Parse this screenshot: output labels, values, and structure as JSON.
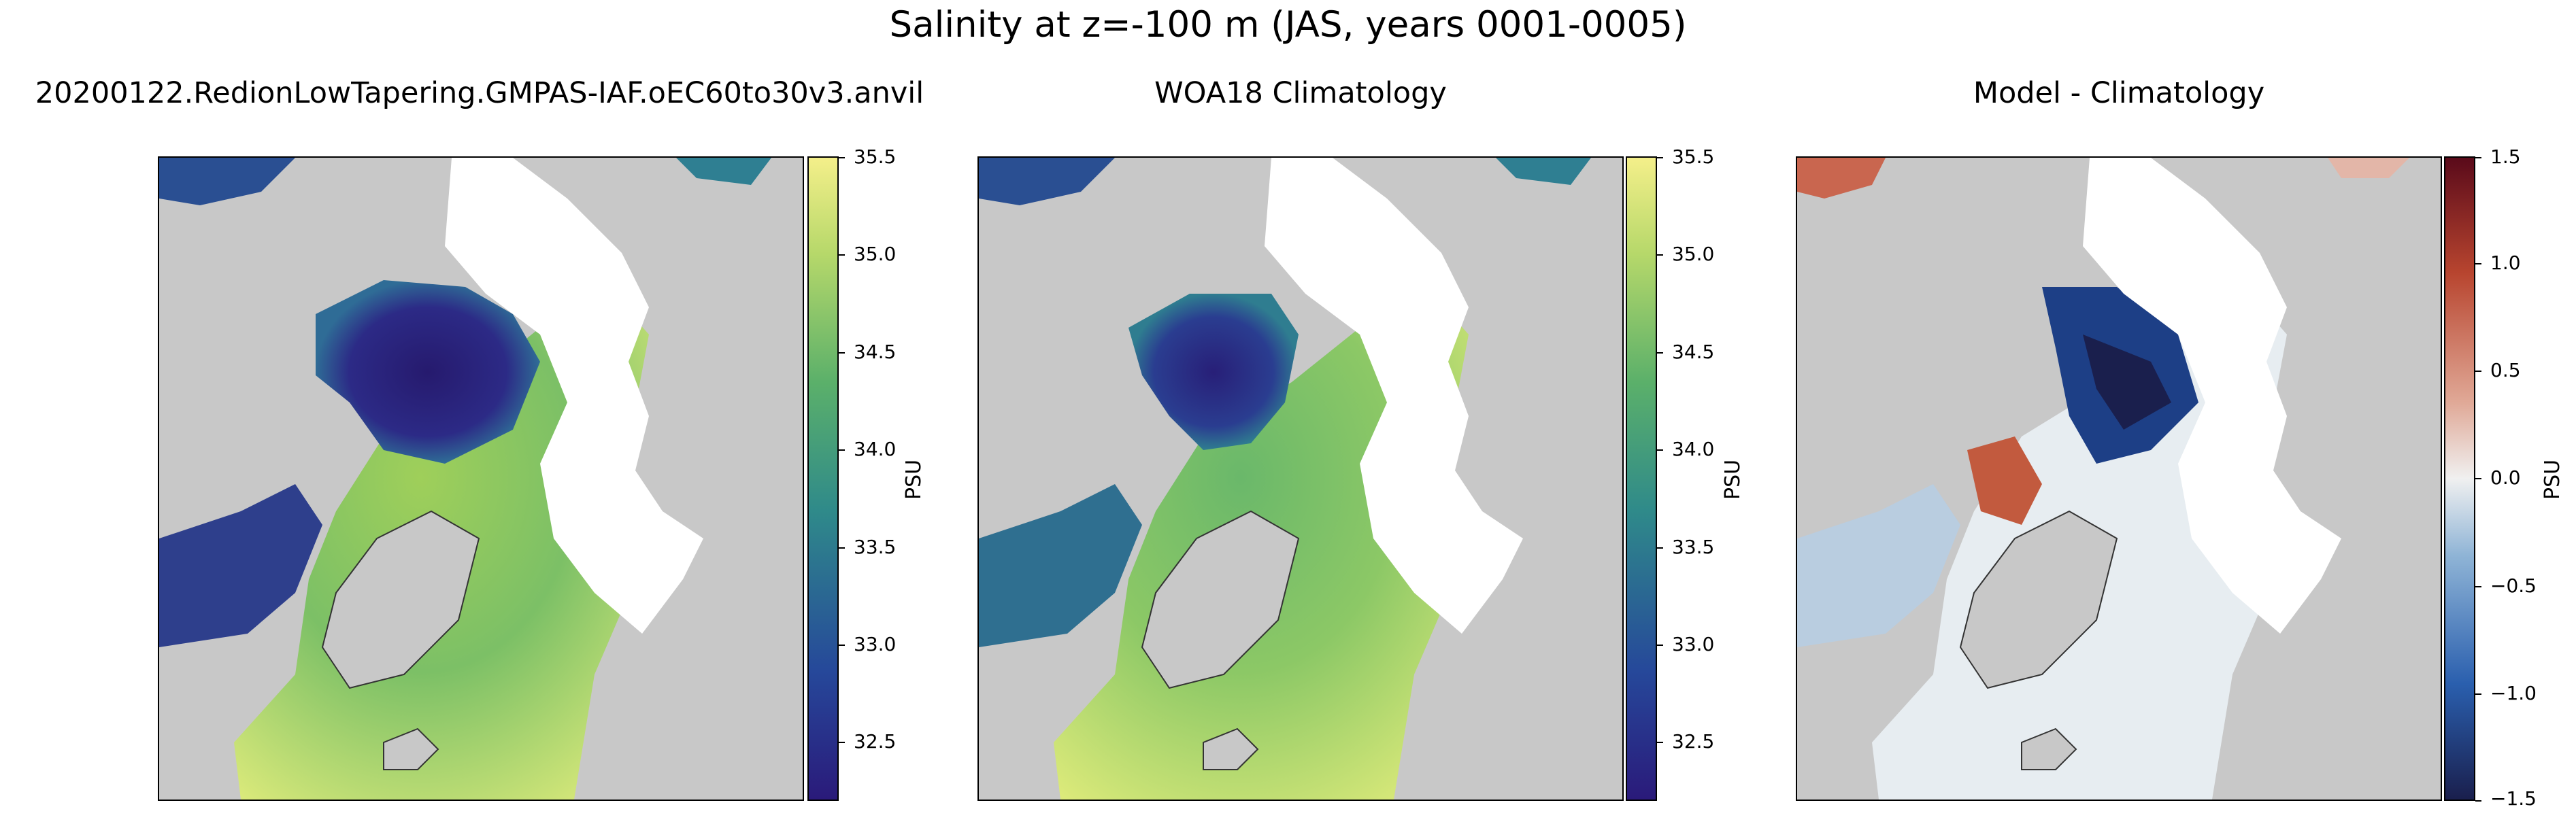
{
  "figure": {
    "title": "Salinity at z=-100 m (JAS, years 0001-0005)"
  },
  "panels": [
    {
      "title": "20200122.RedionLowTapering.GMPAS-IAF.oEC60to30v3.anvil",
      "colormap": "haline",
      "colorbar": {
        "label": "PSU",
        "min": 32.2,
        "max": 35.5,
        "ticks": [
          "32.5",
          "33.0",
          "33.5",
          "34.0",
          "34.5",
          "35.0",
          "35.5"
        ]
      }
    },
    {
      "title": "WOA18 Climatology",
      "colormap": "haline",
      "colorbar": {
        "label": "PSU",
        "min": 32.2,
        "max": 35.5,
        "ticks": [
          "32.5",
          "33.0",
          "33.5",
          "34.0",
          "34.5",
          "35.0",
          "35.5"
        ]
      }
    },
    {
      "title": "Model - Climatology",
      "colormap": "diverging-balance",
      "colorbar": {
        "label": "PSU",
        "min": -1.5,
        "max": 1.5,
        "ticks": [
          "−1.5",
          "−1.0",
          "−0.5",
          "0.0",
          "0.5",
          "1.0",
          "1.5"
        ]
      }
    }
  ],
  "colors": {
    "land": "#c8c8c8",
    "no_data": "#ffffff",
    "haline_low": "#2a1a7a",
    "haline_mid": "#2f8a8a",
    "haline_high": "#f4ef8a",
    "diverging_low": "#1a1f4d",
    "diverging_mid": "#f0f0f0",
    "diverging_high": "#5a0a1a"
  }
}
